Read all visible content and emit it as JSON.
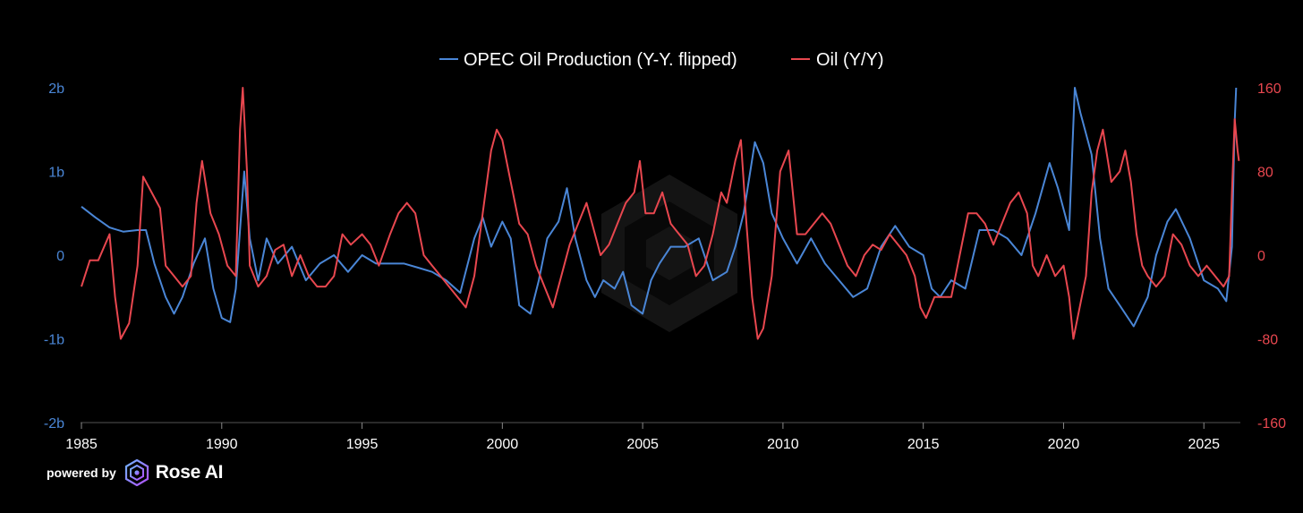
{
  "chart_data": {
    "type": "line",
    "title": "",
    "xlabel": "",
    "ylabel_left": "",
    "ylabel_right": "",
    "xlim": [
      1985,
      2026.3
    ],
    "x_ticks": [
      1985,
      1990,
      1995,
      2000,
      2005,
      2010,
      2015,
      2020,
      2025
    ],
    "x_tick_labels": [
      "1985",
      "1990",
      "1995",
      "2000",
      "2005",
      "2010",
      "2015",
      "2020",
      "2025"
    ],
    "y_left": {
      "ylim": [
        -2,
        2
      ],
      "ticks": [
        2,
        1,
        0,
        -1,
        -2
      ],
      "tick_labels": [
        "2b",
        "1b",
        "0",
        "-1b",
        "-2b"
      ],
      "color": "#4a86d6"
    },
    "y_right": {
      "ylim": [
        -160,
        160
      ],
      "ticks": [
        160,
        80,
        0,
        -80,
        -160
      ],
      "tick_labels": [
        "160",
        "80",
        "0",
        "-80",
        "-160"
      ],
      "color": "#e8474f"
    },
    "legend": {
      "position": "top-center"
    },
    "grid": false,
    "series": [
      {
        "name": "OPEC Oil Production (Y-Y. flipped)",
        "axis": "left",
        "color": "#4a86d6",
        "points": [
          [
            1985.0,
            0.58
          ],
          [
            1985.5,
            0.45
          ],
          [
            1986.0,
            0.33
          ],
          [
            1986.5,
            0.28
          ],
          [
            1987.0,
            0.3
          ],
          [
            1987.3,
            0.3
          ],
          [
            1987.6,
            -0.1
          ],
          [
            1988.0,
            -0.5
          ],
          [
            1988.3,
            -0.7
          ],
          [
            1988.6,
            -0.5
          ],
          [
            1989.0,
            -0.1
          ],
          [
            1989.4,
            0.2
          ],
          [
            1989.7,
            -0.4
          ],
          [
            1990.0,
            -0.75
          ],
          [
            1990.3,
            -0.8
          ],
          [
            1990.5,
            -0.4
          ],
          [
            1990.8,
            1.0
          ],
          [
            1991.0,
            0.2
          ],
          [
            1991.3,
            -0.3
          ],
          [
            1991.6,
            0.2
          ],
          [
            1992.0,
            -0.1
          ],
          [
            1992.5,
            0.1
          ],
          [
            1993.0,
            -0.3
          ],
          [
            1993.5,
            -0.1
          ],
          [
            1994.0,
            0.0
          ],
          [
            1994.5,
            -0.2
          ],
          [
            1995.0,
            0.0
          ],
          [
            1995.5,
            -0.1
          ],
          [
            1996.0,
            -0.1
          ],
          [
            1996.5,
            -0.1
          ],
          [
            1997.0,
            -0.15
          ],
          [
            1997.5,
            -0.2
          ],
          [
            1998.0,
            -0.3
          ],
          [
            1998.5,
            -0.45
          ],
          [
            1999.0,
            0.2
          ],
          [
            1999.3,
            0.45
          ],
          [
            1999.6,
            0.1
          ],
          [
            2000.0,
            0.4
          ],
          [
            2000.3,
            0.2
          ],
          [
            2000.6,
            -0.6
          ],
          [
            2001.0,
            -0.7
          ],
          [
            2001.3,
            -0.3
          ],
          [
            2001.6,
            0.2
          ],
          [
            2002.0,
            0.4
          ],
          [
            2002.3,
            0.8
          ],
          [
            2002.6,
            0.2
          ],
          [
            2003.0,
            -0.3
          ],
          [
            2003.3,
            -0.5
          ],
          [
            2003.6,
            -0.3
          ],
          [
            2004.0,
            -0.4
          ],
          [
            2004.3,
            -0.2
          ],
          [
            2004.6,
            -0.6
          ],
          [
            2005.0,
            -0.7
          ],
          [
            2005.3,
            -0.3
          ],
          [
            2005.6,
            -0.1
          ],
          [
            2006.0,
            0.1
          ],
          [
            2006.5,
            0.1
          ],
          [
            2007.0,
            0.2
          ],
          [
            2007.5,
            -0.3
          ],
          [
            2008.0,
            -0.2
          ],
          [
            2008.3,
            0.1
          ],
          [
            2008.6,
            0.5
          ],
          [
            2009.0,
            1.35
          ],
          [
            2009.3,
            1.1
          ],
          [
            2009.6,
            0.5
          ],
          [
            2010.0,
            0.2
          ],
          [
            2010.5,
            -0.1
          ],
          [
            2011.0,
            0.2
          ],
          [
            2011.5,
            -0.1
          ],
          [
            2012.0,
            -0.3
          ],
          [
            2012.5,
            -0.5
          ],
          [
            2013.0,
            -0.4
          ],
          [
            2013.5,
            0.1
          ],
          [
            2014.0,
            0.35
          ],
          [
            2014.5,
            0.1
          ],
          [
            2015.0,
            0.0
          ],
          [
            2015.3,
            -0.4
          ],
          [
            2015.6,
            -0.5
          ],
          [
            2016.0,
            -0.3
          ],
          [
            2016.5,
            -0.4
          ],
          [
            2017.0,
            0.3
          ],
          [
            2017.5,
            0.3
          ],
          [
            2018.0,
            0.2
          ],
          [
            2018.5,
            0.0
          ],
          [
            2019.0,
            0.5
          ],
          [
            2019.5,
            1.1
          ],
          [
            2019.8,
            0.8
          ],
          [
            2020.2,
            0.3
          ],
          [
            2020.4,
            2.0
          ],
          [
            2020.6,
            1.7
          ],
          [
            2021.0,
            1.2
          ],
          [
            2021.3,
            0.2
          ],
          [
            2021.6,
            -0.4
          ],
          [
            2022.0,
            -0.6
          ],
          [
            2022.5,
            -0.85
          ],
          [
            2023.0,
            -0.5
          ],
          [
            2023.3,
            0.0
          ],
          [
            2023.7,
            0.4
          ],
          [
            2024.0,
            0.55
          ],
          [
            2024.5,
            0.2
          ],
          [
            2025.0,
            -0.3
          ],
          [
            2025.5,
            -0.4
          ],
          [
            2025.8,
            -0.55
          ],
          [
            2026.0,
            0.1
          ],
          [
            2026.1,
            1.6
          ],
          [
            2026.15,
            2.0
          ]
        ]
      },
      {
        "name": "Oil (Y/Y)",
        "axis": "right",
        "color": "#e8474f",
        "points": [
          [
            1985.0,
            -30
          ],
          [
            1985.3,
            -5
          ],
          [
            1985.6,
            -5
          ],
          [
            1986.0,
            20
          ],
          [
            1986.2,
            -40
          ],
          [
            1986.4,
            -80
          ],
          [
            1986.7,
            -65
          ],
          [
            1987.0,
            -10
          ],
          [
            1987.2,
            75
          ],
          [
            1987.5,
            60
          ],
          [
            1987.8,
            45
          ],
          [
            1988.0,
            -10
          ],
          [
            1988.3,
            -20
          ],
          [
            1988.6,
            -30
          ],
          [
            1988.9,
            -20
          ],
          [
            1989.1,
            50
          ],
          [
            1989.3,
            90
          ],
          [
            1989.6,
            40
          ],
          [
            1989.9,
            20
          ],
          [
            1990.2,
            -10
          ],
          [
            1990.5,
            -20
          ],
          [
            1990.65,
            120
          ],
          [
            1990.75,
            160
          ],
          [
            1990.9,
            80
          ],
          [
            1991.0,
            -10
          ],
          [
            1991.3,
            -30
          ],
          [
            1991.6,
            -20
          ],
          [
            1991.9,
            5
          ],
          [
            1992.2,
            10
          ],
          [
            1992.5,
            -20
          ],
          [
            1992.8,
            0
          ],
          [
            1993.1,
            -20
          ],
          [
            1993.4,
            -30
          ],
          [
            1993.7,
            -30
          ],
          [
            1994.0,
            -20
          ],
          [
            1994.3,
            20
          ],
          [
            1994.6,
            10
          ],
          [
            1995.0,
            20
          ],
          [
            1995.3,
            10
          ],
          [
            1995.6,
            -10
          ],
          [
            1996.0,
            20
          ],
          [
            1996.3,
            40
          ],
          [
            1996.6,
            50
          ],
          [
            1996.9,
            40
          ],
          [
            1997.2,
            0
          ],
          [
            1997.5,
            -10
          ],
          [
            1997.8,
            -20
          ],
          [
            1998.1,
            -30
          ],
          [
            1998.4,
            -40
          ],
          [
            1998.7,
            -50
          ],
          [
            1999.0,
            -20
          ],
          [
            1999.3,
            40
          ],
          [
            1999.6,
            100
          ],
          [
            1999.8,
            120
          ],
          [
            2000.0,
            110
          ],
          [
            2000.3,
            70
          ],
          [
            2000.6,
            30
          ],
          [
            2000.9,
            20
          ],
          [
            2001.2,
            -10
          ],
          [
            2001.5,
            -30
          ],
          [
            2001.8,
            -50
          ],
          [
            2002.1,
            -20
          ],
          [
            2002.4,
            10
          ],
          [
            2002.7,
            30
          ],
          [
            2003.0,
            50
          ],
          [
            2003.2,
            30
          ],
          [
            2003.5,
            0
          ],
          [
            2003.8,
            10
          ],
          [
            2004.1,
            30
          ],
          [
            2004.4,
            50
          ],
          [
            2004.7,
            60
          ],
          [
            2004.9,
            90
          ],
          [
            2005.1,
            40
          ],
          [
            2005.4,
            40
          ],
          [
            2005.7,
            60
          ],
          [
            2006.0,
            30
          ],
          [
            2006.3,
            20
          ],
          [
            2006.6,
            10
          ],
          [
            2006.9,
            -20
          ],
          [
            2007.2,
            -10
          ],
          [
            2007.5,
            20
          ],
          [
            2007.8,
            60
          ],
          [
            2008.0,
            50
          ],
          [
            2008.3,
            90
          ],
          [
            2008.5,
            110
          ],
          [
            2008.7,
            30
          ],
          [
            2008.9,
            -40
          ],
          [
            2009.1,
            -80
          ],
          [
            2009.3,
            -70
          ],
          [
            2009.6,
            -20
          ],
          [
            2009.9,
            80
          ],
          [
            2010.2,
            100
          ],
          [
            2010.5,
            20
          ],
          [
            2010.8,
            20
          ],
          [
            2011.1,
            30
          ],
          [
            2011.4,
            40
          ],
          [
            2011.7,
            30
          ],
          [
            2012.0,
            10
          ],
          [
            2012.3,
            -10
          ],
          [
            2012.6,
            -20
          ],
          [
            2012.9,
            0
          ],
          [
            2013.2,
            10
          ],
          [
            2013.5,
            5
          ],
          [
            2013.8,
            20
          ],
          [
            2014.1,
            10
          ],
          [
            2014.4,
            0
          ],
          [
            2014.7,
            -20
          ],
          [
            2014.9,
            -50
          ],
          [
            2015.1,
            -60
          ],
          [
            2015.4,
            -40
          ],
          [
            2015.7,
            -40
          ],
          [
            2016.0,
            -40
          ],
          [
            2016.3,
            0
          ],
          [
            2016.6,
            40
          ],
          [
            2016.9,
            40
          ],
          [
            2017.2,
            30
          ],
          [
            2017.5,
            10
          ],
          [
            2017.8,
            30
          ],
          [
            2018.1,
            50
          ],
          [
            2018.4,
            60
          ],
          [
            2018.7,
            40
          ],
          [
            2018.9,
            -10
          ],
          [
            2019.1,
            -20
          ],
          [
            2019.4,
            0
          ],
          [
            2019.7,
            -20
          ],
          [
            2020.0,
            -10
          ],
          [
            2020.2,
            -40
          ],
          [
            2020.35,
            -80
          ],
          [
            2020.5,
            -60
          ],
          [
            2020.8,
            -20
          ],
          [
            2021.0,
            60
          ],
          [
            2021.2,
            100
          ],
          [
            2021.4,
            120
          ],
          [
            2021.7,
            70
          ],
          [
            2022.0,
            80
          ],
          [
            2022.2,
            100
          ],
          [
            2022.4,
            70
          ],
          [
            2022.6,
            20
          ],
          [
            2022.8,
            -10
          ],
          [
            2023.0,
            -20
          ],
          [
            2023.3,
            -30
          ],
          [
            2023.6,
            -20
          ],
          [
            2023.9,
            20
          ],
          [
            2024.2,
            10
          ],
          [
            2024.5,
            -10
          ],
          [
            2024.8,
            -20
          ],
          [
            2025.1,
            -10
          ],
          [
            2025.4,
            -20
          ],
          [
            2025.7,
            -30
          ],
          [
            2025.9,
            -20
          ],
          [
            2026.0,
            60
          ],
          [
            2026.1,
            130
          ],
          [
            2026.2,
            100
          ],
          [
            2026.25,
            90
          ]
        ]
      }
    ]
  },
  "branding": {
    "powered_by": "powered by",
    "name": "Rose AI"
  }
}
